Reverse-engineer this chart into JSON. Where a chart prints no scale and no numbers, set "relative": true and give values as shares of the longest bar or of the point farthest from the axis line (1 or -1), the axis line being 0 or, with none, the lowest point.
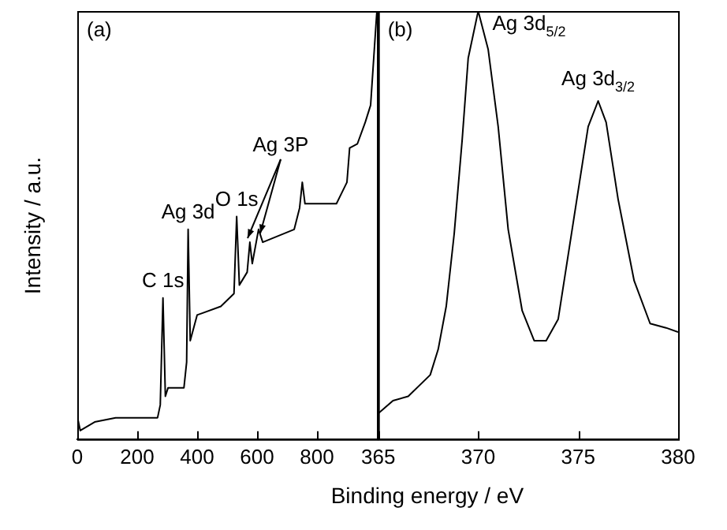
{
  "chart_data": [
    {
      "type": "line",
      "ylabel": "Intensity / a.u.",
      "xlim": [
        0,
        1000
      ],
      "xticks": [
        0,
        200,
        400,
        600,
        800
      ],
      "relative": true,
      "legend": false,
      "grid": false,
      "marker": "none",
      "x": [
        1,
        10,
        58,
        128,
        268,
        277,
        286,
        294,
        303,
        356,
        365,
        370,
        377,
        400,
        479,
        523,
        532,
        541,
        567,
        576,
        584,
        605,
        619,
        724,
        742,
        751,
        760,
        865,
        900,
        909,
        935,
        961,
        979,
        997,
        1000
      ],
      "series": [
        {
          "color": "#000000",
          "values": [
            0.05,
            0.02,
            0.04,
            0.05,
            0.05,
            0.08,
            0.33,
            0.1,
            0.12,
            0.12,
            0.18,
            0.49,
            0.23,
            0.29,
            0.31,
            0.34,
            0.52,
            0.36,
            0.39,
            0.46,
            0.41,
            0.49,
            0.46,
            0.49,
            0.54,
            0.6,
            0.55,
            0.55,
            0.6,
            0.68,
            0.69,
            0.74,
            0.78,
            0.97,
            1
          ]
        }
      ],
      "annotations": [
        "(a)",
        {
          "text": "C 1s",
          "x": 286,
          "y": 0.33
        },
        {
          "text": "Ag 3d",
          "x": 370,
          "y": 0.49
        },
        {
          "text": "O 1s",
          "x": 532,
          "y": 0.52
        },
        {
          "text": "Ag 3P",
          "x": 568,
          "y": 0.47
        }
      ]
    },
    {
      "type": "line",
      "xlabel": "Binding energy / eV",
      "xlim": [
        365,
        380
      ],
      "xticks": [
        365,
        370,
        375,
        380
      ],
      "relative": true,
      "legend": false,
      "grid": false,
      "marker": "none",
      "x": [
        365.0,
        365.74,
        366.5,
        367.6,
        368.0,
        368.4,
        368.8,
        369.2,
        369.5,
        370.0,
        370.5,
        371.0,
        371.5,
        372.2,
        372.8,
        373.4,
        374.0,
        374.8,
        375.5,
        376.0,
        376.4,
        377.0,
        377.8,
        378.6,
        379.4,
        380
      ],
      "series": [
        {
          "color": "#000000",
          "values": [
            0.06,
            0.09,
            0.1,
            0.15,
            0.21,
            0.31,
            0.48,
            0.7,
            0.89,
            1,
            0.91,
            0.73,
            0.49,
            0.3,
            0.23,
            0.23,
            0.28,
            0.52,
            0.73,
            0.79,
            0.74,
            0.56,
            0.37,
            0.27,
            0.26,
            0.25
          ]
        }
      ],
      "annotations": [
        "(b)",
        {
          "text": "Ag 3d$_{5/2}$",
          "x": 370,
          "y": 1
        },
        {
          "text": "Ag 3d$_{3/2}$",
          "x": 376,
          "y": 0.79
        }
      ]
    }
  ]
}
